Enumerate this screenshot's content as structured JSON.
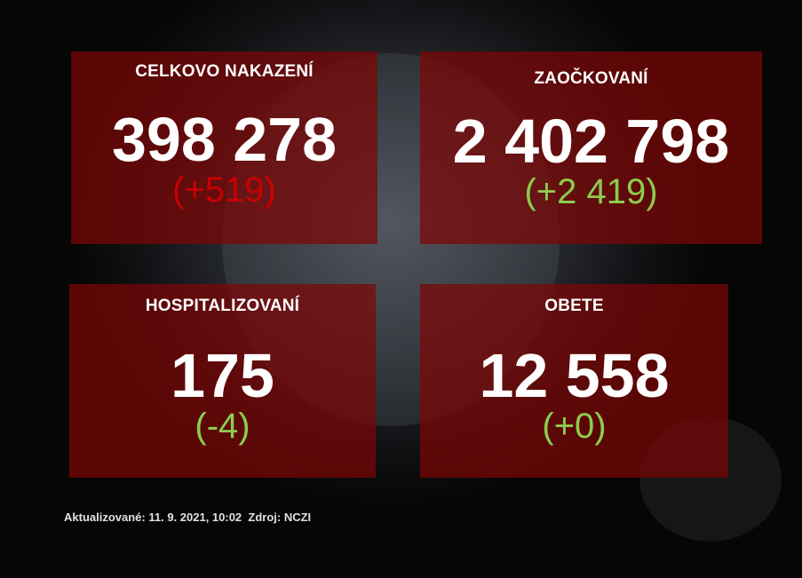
{
  "cards": [
    {
      "title": "CELKOVO NAKAZENÍ",
      "value": "398 278",
      "delta": "(+519)"
    },
    {
      "title": "ZAOČKOVANÍ",
      "value": "2 402 798",
      "delta": "(+2 419)"
    },
    {
      "title": "HOSPITALIZOVANÍ",
      "value": "175",
      "delta": "(-4)"
    },
    {
      "title": "OBETE",
      "value": "12 558",
      "delta": "(+0)"
    }
  ],
  "footer": {
    "updated": "Aktualizované: 11. 9. 2021, 10:02",
    "source": "Zdroj: NCZI"
  },
  "colors": {
    "increase_bad": "#c80000",
    "positive": "#8ccc4c",
    "card": "#7d0505"
  }
}
